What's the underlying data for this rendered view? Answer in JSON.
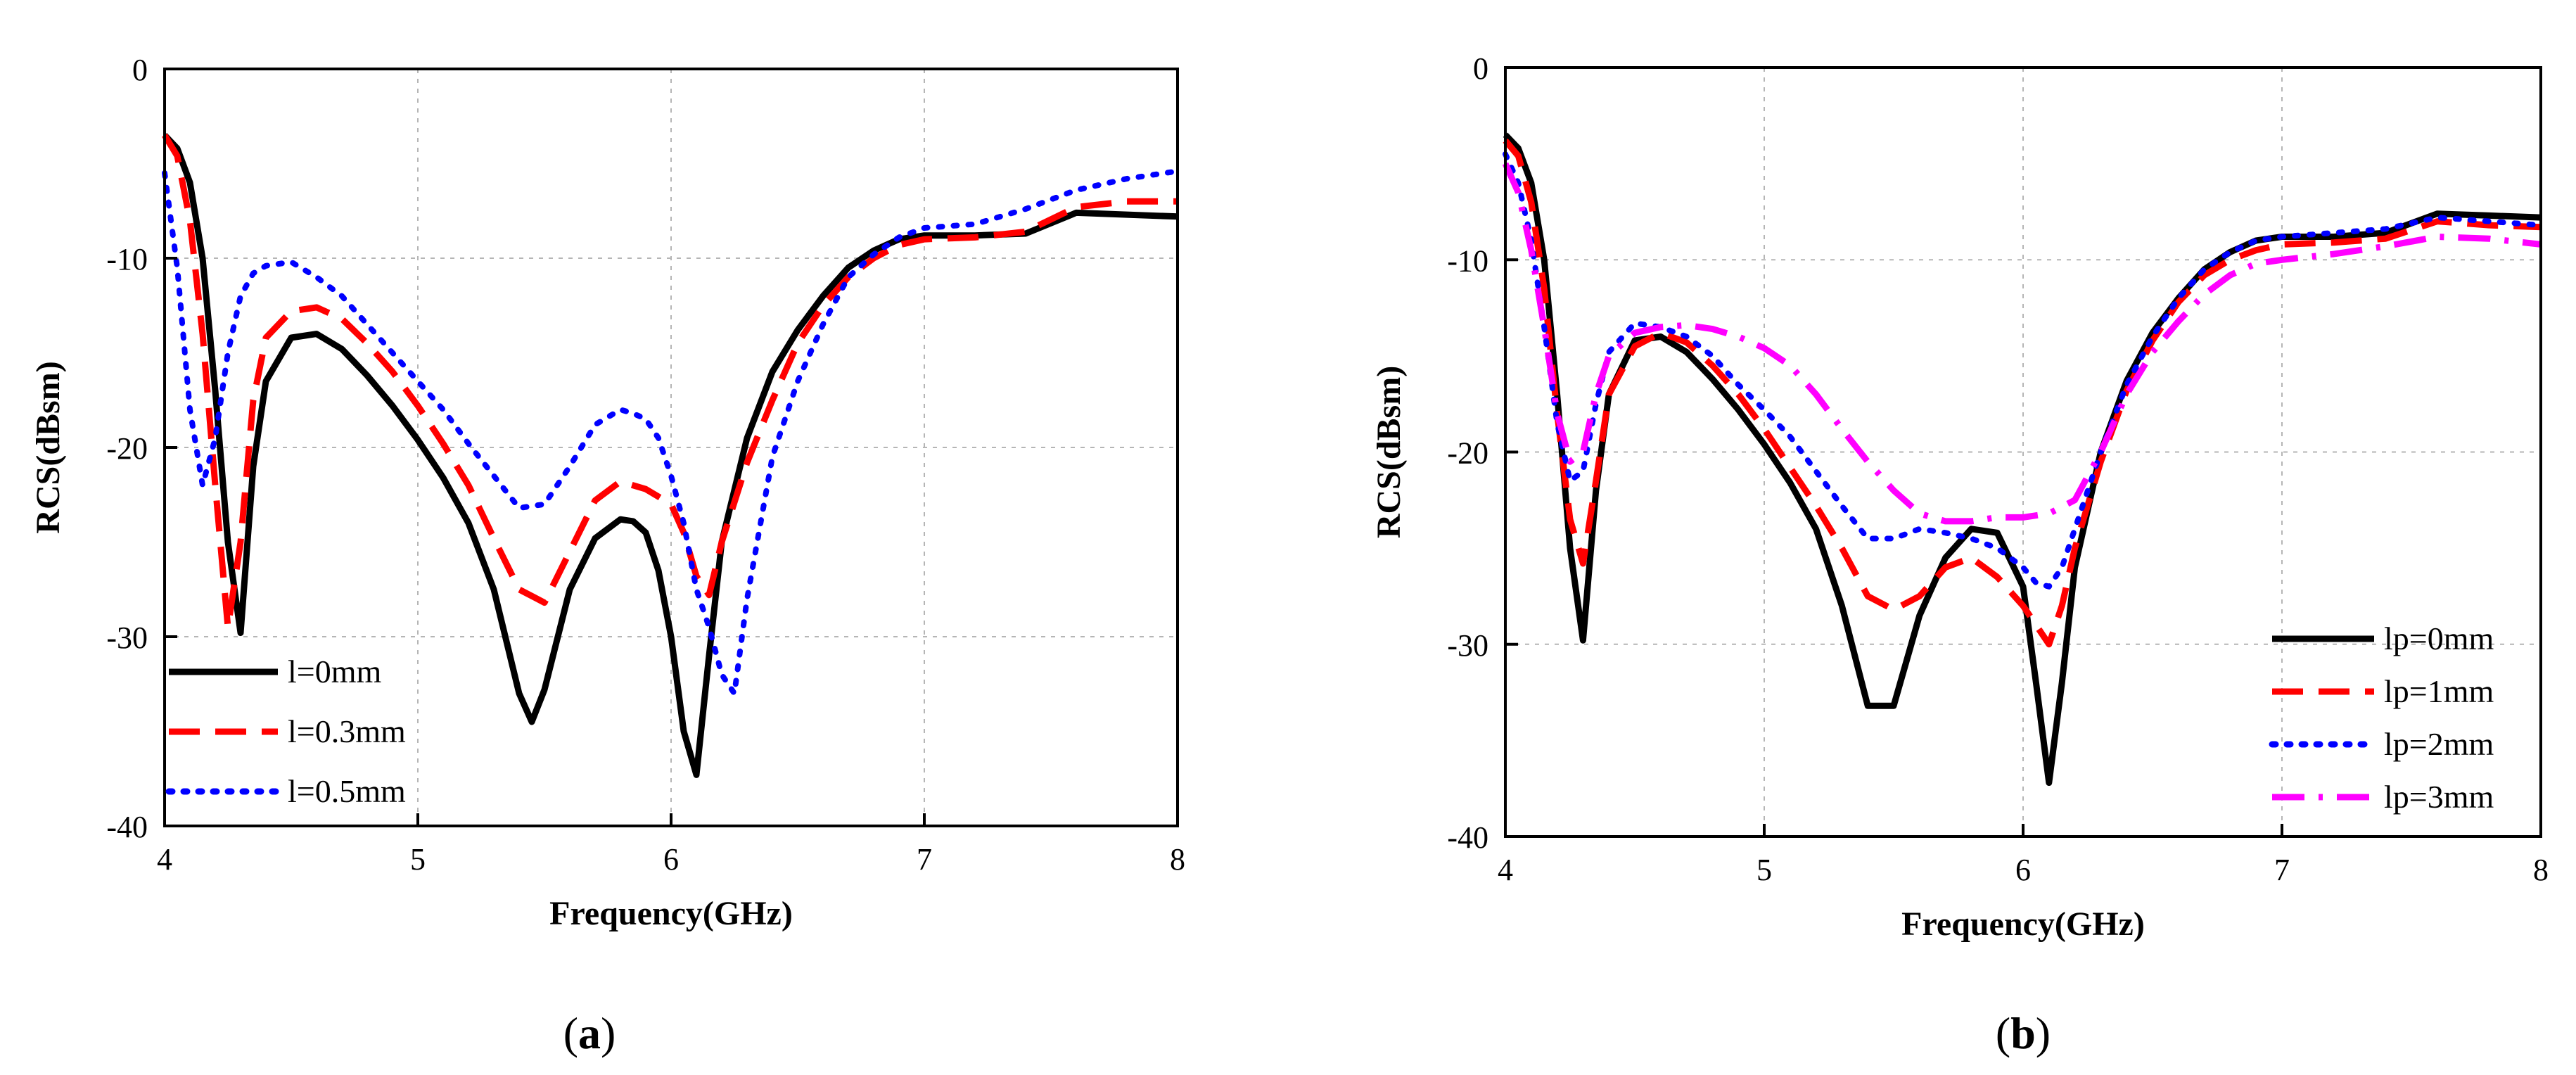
{
  "chart_data": [
    {
      "type": "line",
      "panel_label": "a",
      "xlabel": "Frequency(GHz)",
      "ylabel": "RCS(dBsm)",
      "xlim": [
        4,
        8
      ],
      "ylim": [
        -40,
        0
      ],
      "xticks": [
        4,
        5,
        6,
        7,
        8
      ],
      "yticks": [
        -40,
        -30,
        -20,
        -10,
        0
      ],
      "grid": true,
      "legend_position": "bottom-left",
      "series": [
        {
          "name": "l=0mm",
          "color": "#000000",
          "style": "solid",
          "x": [
            4.0,
            4.05,
            4.1,
            4.15,
            4.2,
            4.25,
            4.3,
            4.35,
            4.4,
            4.5,
            4.6,
            4.7,
            4.8,
            4.9,
            5.0,
            5.1,
            5.2,
            5.3,
            5.4,
            5.45,
            5.5,
            5.6,
            5.7,
            5.8,
            5.85,
            5.9,
            5.95,
            6.0,
            6.05,
            6.1,
            6.15,
            6.2,
            6.3,
            6.4,
            6.5,
            6.6,
            6.7,
            6.8,
            6.9,
            7.0,
            7.2,
            7.4,
            7.6,
            7.8,
            8.0
          ],
          "y": [
            -3.5,
            -4.2,
            -6.0,
            -10.0,
            -17.0,
            -25.0,
            -29.8,
            -21.0,
            -16.5,
            -14.2,
            -14.0,
            -14.8,
            -16.2,
            -17.8,
            -19.6,
            -21.6,
            -24.0,
            -27.5,
            -33.0,
            -34.5,
            -32.8,
            -27.5,
            -24.8,
            -23.8,
            -23.9,
            -24.5,
            -26.5,
            -30.0,
            -35.0,
            -37.3,
            -31.0,
            -25.0,
            -19.5,
            -16.0,
            -13.8,
            -12.0,
            -10.5,
            -9.6,
            -9.0,
            -8.8,
            -8.8,
            -8.7,
            -7.6,
            -7.7,
            -7.8
          ]
        },
        {
          "name": "l=0.3mm",
          "color": "#ff0000",
          "style": "dashed",
          "x": [
            4.0,
            4.05,
            4.1,
            4.15,
            4.2,
            4.25,
            4.3,
            4.35,
            4.4,
            4.5,
            4.6,
            4.7,
            4.8,
            4.9,
            5.0,
            5.1,
            5.2,
            5.3,
            5.4,
            5.5,
            5.6,
            5.7,
            5.8,
            5.9,
            6.0,
            6.05,
            6.1,
            6.15,
            6.2,
            6.3,
            6.4,
            6.5,
            6.6,
            6.7,
            6.8,
            6.9,
            7.0,
            7.2,
            7.4,
            7.6,
            7.8,
            8.0
          ],
          "y": [
            -3.5,
            -4.6,
            -8.0,
            -14.0,
            -22.0,
            -29.5,
            -25.0,
            -17.5,
            -14.2,
            -12.8,
            -12.6,
            -13.2,
            -14.5,
            -16.0,
            -17.8,
            -19.8,
            -22.0,
            -24.8,
            -27.5,
            -28.2,
            -25.5,
            -22.8,
            -21.8,
            -22.2,
            -23.0,
            -24.5,
            -26.8,
            -27.8,
            -25.0,
            -20.8,
            -17.5,
            -14.5,
            -12.5,
            -11.0,
            -10.0,
            -9.3,
            -9.0,
            -8.9,
            -8.6,
            -7.3,
            -7.0,
            -7.0
          ]
        },
        {
          "name": "l=0.5mm",
          "color": "#0000ff",
          "style": "dotted",
          "x": [
            4.0,
            4.05,
            4.1,
            4.15,
            4.2,
            4.25,
            4.3,
            4.35,
            4.4,
            4.5,
            4.6,
            4.7,
            4.8,
            4.9,
            5.0,
            5.1,
            5.2,
            5.3,
            5.4,
            5.5,
            5.6,
            5.7,
            5.8,
            5.85,
            5.9,
            5.95,
            6.0,
            6.05,
            6.1,
            6.15,
            6.2,
            6.25,
            6.3,
            6.4,
            6.5,
            6.6,
            6.7,
            6.8,
            6.9,
            7.0,
            7.2,
            7.4,
            7.6,
            7.8,
            8.0
          ],
          "y": [
            -5.5,
            -10.5,
            -18.0,
            -22.0,
            -19.5,
            -15.0,
            -12.0,
            -10.8,
            -10.4,
            -10.2,
            -11.0,
            -12.0,
            -13.5,
            -15.0,
            -16.5,
            -18.0,
            -19.8,
            -21.5,
            -23.2,
            -23.0,
            -21.0,
            -18.8,
            -18.0,
            -18.2,
            -18.5,
            -19.5,
            -21.5,
            -24.0,
            -27.5,
            -29.5,
            -32.0,
            -33.0,
            -28.0,
            -20.5,
            -16.5,
            -13.5,
            -11.0,
            -9.8,
            -8.9,
            -8.4,
            -8.2,
            -7.4,
            -6.4,
            -5.8,
            -5.4
          ]
        }
      ]
    },
    {
      "type": "line",
      "panel_label": "b",
      "xlabel": "Frequency(GHz)",
      "ylabel": "RCS(dBsm)",
      "xlim": [
        4,
        8
      ],
      "ylim": [
        -40,
        0
      ],
      "xticks": [
        4,
        5,
        6,
        7,
        8
      ],
      "yticks": [
        -40,
        -30,
        -20,
        -10,
        0
      ],
      "grid": true,
      "legend_position": "bottom-right",
      "series": [
        {
          "name": "lp=0mm",
          "color": "#000000",
          "style": "solid",
          "x": [
            4.0,
            4.05,
            4.1,
            4.15,
            4.2,
            4.25,
            4.3,
            4.35,
            4.4,
            4.5,
            4.6,
            4.7,
            4.8,
            4.9,
            5.0,
            5.1,
            5.2,
            5.3,
            5.4,
            5.5,
            5.6,
            5.7,
            5.8,
            5.9,
            6.0,
            6.05,
            6.1,
            6.15,
            6.2,
            6.3,
            6.4,
            6.5,
            6.6,
            6.7,
            6.8,
            6.9,
            7.0,
            7.2,
            7.4,
            7.6,
            7.8,
            8.0
          ],
          "y": [
            -3.5,
            -4.2,
            -6.0,
            -10.0,
            -17.0,
            -25.0,
            -29.8,
            -22.0,
            -17.0,
            -14.2,
            -14.0,
            -14.8,
            -16.2,
            -17.8,
            -19.6,
            -21.6,
            -24.0,
            -28.0,
            -33.2,
            -33.2,
            -28.5,
            -25.5,
            -24.0,
            -24.2,
            -27.0,
            -32.0,
            -37.2,
            -32.0,
            -26.0,
            -20.0,
            -16.3,
            -13.8,
            -12.0,
            -10.5,
            -9.6,
            -9.0,
            -8.8,
            -8.8,
            -8.6,
            -7.6,
            -7.7,
            -7.8
          ]
        },
        {
          "name": "lp=1mm",
          "color": "#ff0000",
          "style": "dashed",
          "x": [
            4.0,
            4.05,
            4.1,
            4.15,
            4.2,
            4.25,
            4.3,
            4.35,
            4.4,
            4.5,
            4.6,
            4.7,
            4.8,
            4.9,
            5.0,
            5.1,
            5.2,
            5.3,
            5.4,
            5.5,
            5.6,
            5.7,
            5.8,
            5.9,
            6.0,
            6.05,
            6.1,
            6.15,
            6.2,
            6.3,
            6.4,
            6.5,
            6.6,
            6.7,
            6.8,
            6.9,
            7.0,
            7.2,
            7.4,
            7.6,
            7.8,
            8.0
          ],
          "y": [
            -3.8,
            -4.6,
            -7.0,
            -11.5,
            -18.0,
            -23.5,
            -25.8,
            -21.5,
            -17.0,
            -14.5,
            -13.8,
            -14.3,
            -15.5,
            -17.0,
            -18.8,
            -20.8,
            -22.8,
            -25.0,
            -27.5,
            -28.2,
            -27.5,
            -26.0,
            -25.5,
            -26.5,
            -28.0,
            -29.0,
            -30.0,
            -28.0,
            -25.0,
            -20.5,
            -16.8,
            -14.2,
            -12.2,
            -10.8,
            -10.0,
            -9.5,
            -9.2,
            -9.1,
            -8.9,
            -8.0,
            -8.2,
            -8.3
          ]
        },
        {
          "name": "lp=2mm",
          "color": "#0000ff",
          "style": "dotted",
          "x": [
            4.0,
            4.05,
            4.1,
            4.15,
            4.2,
            4.25,
            4.3,
            4.35,
            4.4,
            4.5,
            4.6,
            4.7,
            4.8,
            4.9,
            5.0,
            5.1,
            5.2,
            5.3,
            5.4,
            5.5,
            5.6,
            5.7,
            5.8,
            5.9,
            6.0,
            6.05,
            6.1,
            6.15,
            6.2,
            6.3,
            6.4,
            6.5,
            6.6,
            6.7,
            6.8,
            6.9,
            7.0,
            7.2,
            7.4,
            7.6,
            7.8,
            8.0
          ],
          "y": [
            -4.5,
            -6.0,
            -9.0,
            -13.5,
            -18.5,
            -21.5,
            -21.0,
            -17.5,
            -14.8,
            -13.3,
            -13.5,
            -14.0,
            -15.0,
            -16.5,
            -17.8,
            -19.2,
            -21.0,
            -22.8,
            -24.5,
            -24.5,
            -24.0,
            -24.2,
            -24.5,
            -25.0,
            -26.0,
            -26.8,
            -27.0,
            -26.0,
            -24.0,
            -20.0,
            -16.5,
            -14.0,
            -12.0,
            -10.5,
            -9.6,
            -9.0,
            -8.8,
            -8.6,
            -8.4,
            -7.8,
            -8.0,
            -8.2
          ]
        },
        {
          "name": "lp=3mm",
          "color": "#ff00ff",
          "style": "dashdot",
          "x": [
            4.0,
            4.05,
            4.1,
            4.15,
            4.2,
            4.25,
            4.3,
            4.35,
            4.4,
            4.5,
            4.6,
            4.7,
            4.8,
            4.9,
            5.0,
            5.1,
            5.2,
            5.3,
            5.4,
            5.5,
            5.6,
            5.7,
            5.8,
            5.9,
            6.0,
            6.1,
            6.2,
            6.3,
            6.4,
            6.5,
            6.6,
            6.7,
            6.8,
            6.9,
            7.0,
            7.2,
            7.4,
            7.6,
            7.8,
            8.0
          ],
          "y": [
            -5.0,
            -6.5,
            -9.5,
            -13.5,
            -18.0,
            -20.5,
            -20.0,
            -17.0,
            -15.0,
            -13.8,
            -13.5,
            -13.4,
            -13.6,
            -14.0,
            -14.6,
            -15.5,
            -17.0,
            -18.8,
            -20.5,
            -22.0,
            -23.2,
            -23.6,
            -23.6,
            -23.4,
            -23.4,
            -23.2,
            -22.5,
            -20.0,
            -17.0,
            -14.8,
            -13.2,
            -11.8,
            -10.8,
            -10.2,
            -10.0,
            -9.7,
            -9.3,
            -8.8,
            -8.9,
            -9.2
          ]
        }
      ]
    }
  ]
}
